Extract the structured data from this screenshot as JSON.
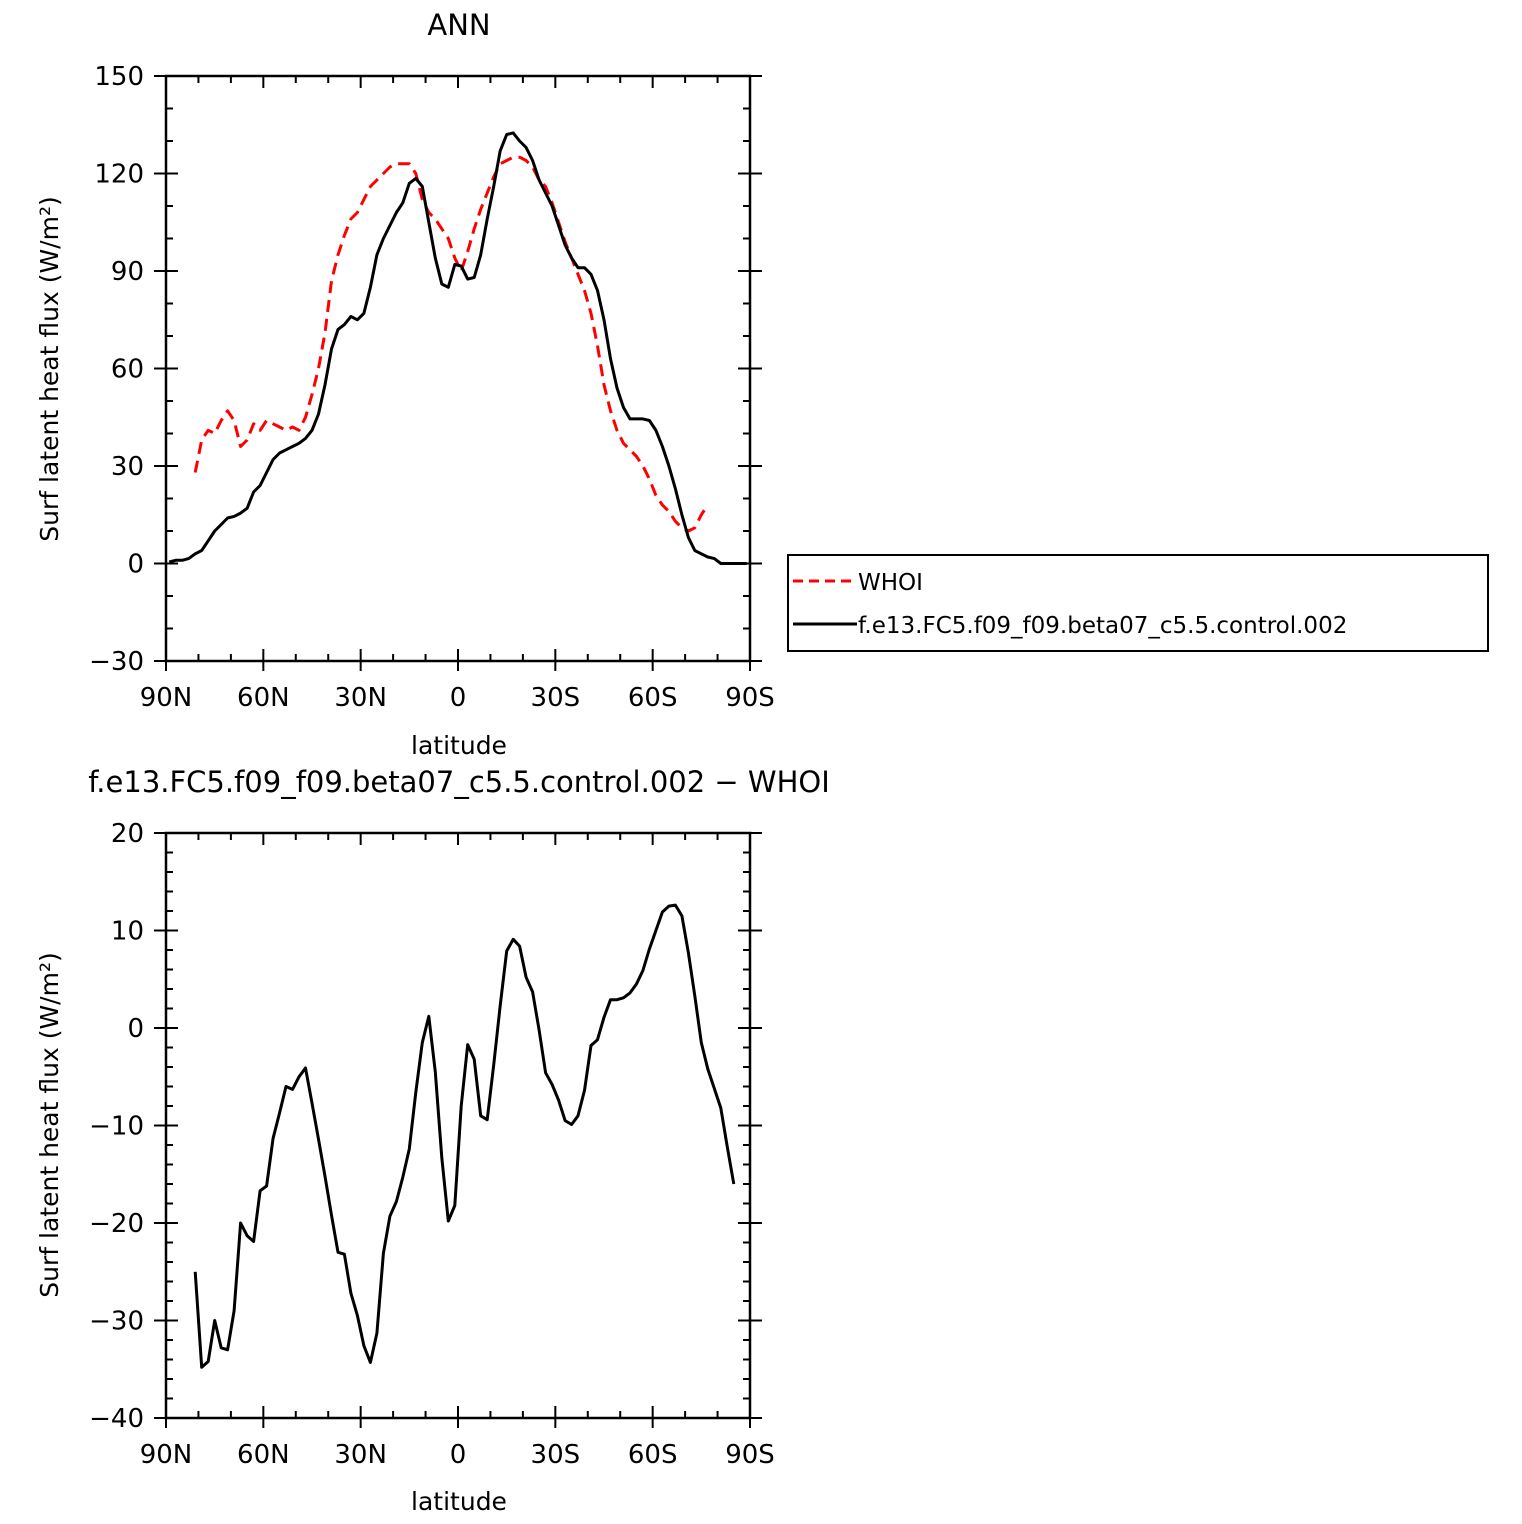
{
  "chart_data": [
    {
      "type": "line",
      "title": "ANN",
      "xlabel": "latitude",
      "ylabel": "Surf latent heat flux (W/m²)",
      "xlim": [
        90,
        -90
      ],
      "ylim": [
        -30,
        150
      ],
      "x_ticks": [
        {
          "value": 90,
          "label": "90N"
        },
        {
          "value": 60,
          "label": "60N"
        },
        {
          "value": 30,
          "label": "30N"
        },
        {
          "value": 0,
          "label": "0"
        },
        {
          "value": -30,
          "label": "30S"
        },
        {
          "value": -60,
          "label": "60S"
        },
        {
          "value": -90,
          "label": "90S"
        }
      ],
      "y_ticks": [
        {
          "value": 150,
          "label": "150"
        },
        {
          "value": 120,
          "label": "120"
        },
        {
          "value": 90,
          "label": "90"
        },
        {
          "value": 60,
          "label": "60"
        },
        {
          "value": 30,
          "label": "30"
        },
        {
          "value": 0,
          "label": "0"
        },
        {
          "value": -30,
          "label": "−30"
        }
      ],
      "legend": {
        "placement": "right",
        "entries": [
          "WHOI",
          "f.e13.FC5.f09_f09.beta07_c5.5.control.002"
        ]
      },
      "series": [
        {
          "name": "WHOI",
          "color": "#ff0000",
          "dash": "dashed",
          "points": [
            [
              81,
              28
            ],
            [
              79,
              38
            ],
            [
              77,
              41
            ],
            [
              75,
              40
            ],
            [
              73,
              44
            ],
            [
              71,
              47
            ],
            [
              69,
              44
            ],
            [
              67,
              36
            ],
            [
              65,
              38
            ],
            [
              63,
              43
            ],
            [
              61,
              41
            ],
            [
              59,
              44
            ],
            [
              57,
              43
            ],
            [
              55,
              42
            ],
            [
              53,
              41
            ],
            [
              51,
              42
            ],
            [
              49,
              41
            ],
            [
              47,
              45
            ],
            [
              45,
              52
            ],
            [
              43,
              60
            ],
            [
              41,
              71
            ],
            [
              39,
              87
            ],
            [
              37,
              95
            ],
            [
              35,
              101
            ],
            [
              33,
              106
            ],
            [
              31,
              108
            ],
            [
              29,
              112
            ],
            [
              27,
              116
            ],
            [
              25,
              118
            ],
            [
              23,
              120
            ],
            [
              21,
              122
            ],
            [
              19,
              123
            ],
            [
              17,
              123
            ],
            [
              15,
              123
            ],
            [
              13,
              120
            ],
            [
              11,
              112
            ],
            [
              9,
              108
            ],
            [
              7,
              106
            ],
            [
              5,
              103
            ],
            [
              3,
              100
            ],
            [
              1,
              94
            ],
            [
              -1,
              90
            ],
            [
              -3,
              96
            ],
            [
              -5,
              103
            ],
            [
              -7,
              109
            ],
            [
              -9,
              114
            ],
            [
              -11,
              119
            ],
            [
              -13,
              123
            ],
            [
              -15,
              124
            ],
            [
              -17,
              125
            ],
            [
              -19,
              125
            ],
            [
              -21,
              124
            ],
            [
              -23,
              122
            ],
            [
              -25,
              118
            ],
            [
              -27,
              116
            ],
            [
              -29,
              111
            ],
            [
              -31,
              105
            ],
            [
              -33,
              99
            ],
            [
              -35,
              94
            ],
            [
              -37,
              89
            ],
            [
              -39,
              84
            ],
            [
              -41,
              77
            ],
            [
              -43,
              67
            ],
            [
              -45,
              55
            ],
            [
              -47,
              47
            ],
            [
              -49,
              41
            ],
            [
              -51,
              37
            ],
            [
              -53,
              35
            ],
            [
              -55,
              33
            ],
            [
              -57,
              30
            ],
            [
              -59,
              26
            ],
            [
              -61,
              21
            ],
            [
              -63,
              18
            ],
            [
              -65,
              16
            ],
            [
              -67,
              13
            ],
            [
              -69,
              11
            ],
            [
              -71,
              10
            ],
            [
              -73,
              11
            ],
            [
              -75,
              15
            ],
            [
              -77,
              18
            ]
          ]
        },
        {
          "name": "f.e13.FC5.f09_f09.beta07_c5.5.control.002",
          "color": "#000000",
          "dash": "solid",
          "points": [
            [
              89,
              0.5
            ],
            [
              87,
              1
            ],
            [
              85,
              1
            ],
            [
              83,
              1.5
            ],
            [
              81,
              3
            ],
            [
              79,
              4
            ],
            [
              77,
              7
            ],
            [
              75,
              10
            ],
            [
              73,
              12
            ],
            [
              71,
              14
            ],
            [
              69,
              14.5
            ],
            [
              67,
              15.5
            ],
            [
              65,
              17
            ],
            [
              63,
              22
            ],
            [
              61,
              24
            ],
            [
              59,
              28
            ],
            [
              57,
              32
            ],
            [
              55,
              34
            ],
            [
              53,
              35
            ],
            [
              51,
              36
            ],
            [
              49,
              37
            ],
            [
              47,
              38.5
            ],
            [
              45,
              41
            ],
            [
              43,
              46
            ],
            [
              41,
              55
            ],
            [
              39,
              66
            ],
            [
              37,
              72
            ],
            [
              35,
              73.5
            ],
            [
              33,
              76
            ],
            [
              31,
              75
            ],
            [
              29,
              77
            ],
            [
              27,
              85
            ],
            [
              25,
              95
            ],
            [
              23,
              100
            ],
            [
              21,
              104
            ],
            [
              19,
              108
            ],
            [
              17,
              111
            ],
            [
              15,
              117
            ],
            [
              13,
              118.5
            ],
            [
              11,
              116
            ],
            [
              9,
              105
            ],
            [
              7,
              94
            ],
            [
              5,
              86
            ],
            [
              3,
              85
            ],
            [
              1,
              92
            ],
            [
              -1,
              91.5
            ],
            [
              -3,
              87.5
            ],
            [
              -5,
              88
            ],
            [
              -7,
              95
            ],
            [
              -9,
              106
            ],
            [
              -11,
              116
            ],
            [
              -13,
              127
            ],
            [
              -15,
              132
            ],
            [
              -17,
              132.5
            ],
            [
              -19,
              130
            ],
            [
              -21,
              128
            ],
            [
              -23,
              124
            ],
            [
              -25,
              118
            ],
            [
              -27,
              114
            ],
            [
              -29,
              110
            ],
            [
              -31,
              104
            ],
            [
              -33,
              98
            ],
            [
              -35,
              94
            ],
            [
              -37,
              91
            ],
            [
              -39,
              91
            ],
            [
              -41,
              89
            ],
            [
              -43,
              84
            ],
            [
              -45,
              75
            ],
            [
              -47,
              63
            ],
            [
              -49,
              54
            ],
            [
              -51,
              48
            ],
            [
              -53,
              44.5
            ],
            [
              -55,
              44.5
            ],
            [
              -57,
              44.5
            ],
            [
              -59,
              44
            ],
            [
              -61,
              41
            ],
            [
              -63,
              36
            ],
            [
              -65,
              30
            ],
            [
              -67,
              23
            ],
            [
              -69,
              15
            ],
            [
              -71,
              8
            ],
            [
              -73,
              4
            ],
            [
              -75,
              3
            ],
            [
              -77,
              2
            ],
            [
              -79,
              1.5
            ],
            [
              -81,
              0
            ],
            [
              -83,
              0
            ],
            [
              -85,
              0
            ],
            [
              -87,
              0
            ],
            [
              -89,
              0
            ]
          ]
        }
      ]
    },
    {
      "type": "line",
      "title": "f.e13.FC5.f09_f09.beta07_c5.5.control.002 − WHOI",
      "xlabel": "latitude",
      "ylabel": "Surf latent heat flux (W/m²)",
      "xlim": [
        90,
        -90
      ],
      "ylim": [
        -40,
        20
      ],
      "x_ticks": [
        {
          "value": 90,
          "label": "90N"
        },
        {
          "value": 60,
          "label": "60N"
        },
        {
          "value": 30,
          "label": "30N"
        },
        {
          "value": 0,
          "label": "0"
        },
        {
          "value": -30,
          "label": "30S"
        },
        {
          "value": -60,
          "label": "60S"
        },
        {
          "value": -90,
          "label": "90S"
        }
      ],
      "y_ticks": [
        {
          "value": 20,
          "label": "20"
        },
        {
          "value": 10,
          "label": "10"
        },
        {
          "value": 0,
          "label": "0"
        },
        {
          "value": -10,
          "label": "−10"
        },
        {
          "value": -20,
          "label": "−20"
        },
        {
          "value": -30,
          "label": "−30"
        },
        {
          "value": -40,
          "label": "−40"
        }
      ],
      "series": [
        {
          "color": "#000000",
          "dash": "solid",
          "points": [
            [
              81,
              -25
            ],
            [
              79,
              -34.8
            ],
            [
              77,
              -34.2
            ],
            [
              75,
              -30
            ],
            [
              73,
              -32.8
            ],
            [
              71,
              -33
            ],
            [
              69,
              -29
            ],
            [
              67,
              -20
            ],
            [
              65,
              -21.3
            ],
            [
              63,
              -21.9
            ],
            [
              61,
              -16.7
            ],
            [
              59,
              -16.2
            ],
            [
              57,
              -11.3
            ],
            [
              55,
              -8.7
            ],
            [
              53,
              -6
            ],
            [
              51,
              -6.3
            ],
            [
              49,
              -5
            ],
            [
              47,
              -4.1
            ],
            [
              45,
              -7.7
            ],
            [
              43,
              -11.4
            ],
            [
              41,
              -15.2
            ],
            [
              39,
              -19.2
            ],
            [
              37,
              -23
            ],
            [
              35,
              -23.2
            ],
            [
              33,
              -27.2
            ],
            [
              31,
              -29.5
            ],
            [
              29,
              -32.6
            ],
            [
              27,
              -34.3
            ],
            [
              25,
              -31.3
            ],
            [
              23,
              -23.1
            ],
            [
              21,
              -19.3
            ],
            [
              19,
              -17.8
            ],
            [
              17,
              -15.3
            ],
            [
              15,
              -12.4
            ],
            [
              13,
              -6.6
            ],
            [
              11,
              -1.5
            ],
            [
              9,
              1.2
            ],
            [
              7,
              -4.5
            ],
            [
              5,
              -13.3
            ],
            [
              3,
              -19.8
            ],
            [
              1,
              -18.2
            ],
            [
              -1,
              -8
            ],
            [
              -3,
              -1.7
            ],
            [
              -5,
              -3.2
            ],
            [
              -7,
              -9
            ],
            [
              -9,
              -9.4
            ],
            [
              -11,
              -3.8
            ],
            [
              -13,
              2.3
            ],
            [
              -15,
              7.9
            ],
            [
              -17,
              9.1
            ],
            [
              -19,
              8.4
            ],
            [
              -21,
              5.2
            ],
            [
              -23,
              3.7
            ],
            [
              -25,
              -0.2
            ],
            [
              -27,
              -4.6
            ],
            [
              -29,
              -5.8
            ],
            [
              -31,
              -7.4
            ],
            [
              -33,
              -9.5
            ],
            [
              -35,
              -9.9
            ],
            [
              -37,
              -9
            ],
            [
              -39,
              -6.4
            ],
            [
              -41,
              -1.8
            ],
            [
              -43,
              -1.2
            ],
            [
              -45,
              1.1
            ],
            [
              -47,
              2.9
            ],
            [
              -49,
              2.9
            ],
            [
              -51,
              3.1
            ],
            [
              -53,
              3.6
            ],
            [
              -55,
              4.5
            ],
            [
              -57,
              5.9
            ],
            [
              -59,
              8.1
            ],
            [
              -61,
              10
            ],
            [
              -63,
              11.9
            ],
            [
              -65,
              12.5
            ],
            [
              -67,
              12.6
            ],
            [
              -69,
              11.5
            ],
            [
              -71,
              7.7
            ],
            [
              -73,
              3.3
            ],
            [
              -75,
              -1.5
            ],
            [
              -77,
              -4.2
            ],
            [
              -79,
              -6.2
            ],
            [
              -81,
              -8.2
            ],
            [
              -83,
              -12.2
            ],
            [
              -85,
              -16
            ]
          ]
        }
      ]
    }
  ]
}
